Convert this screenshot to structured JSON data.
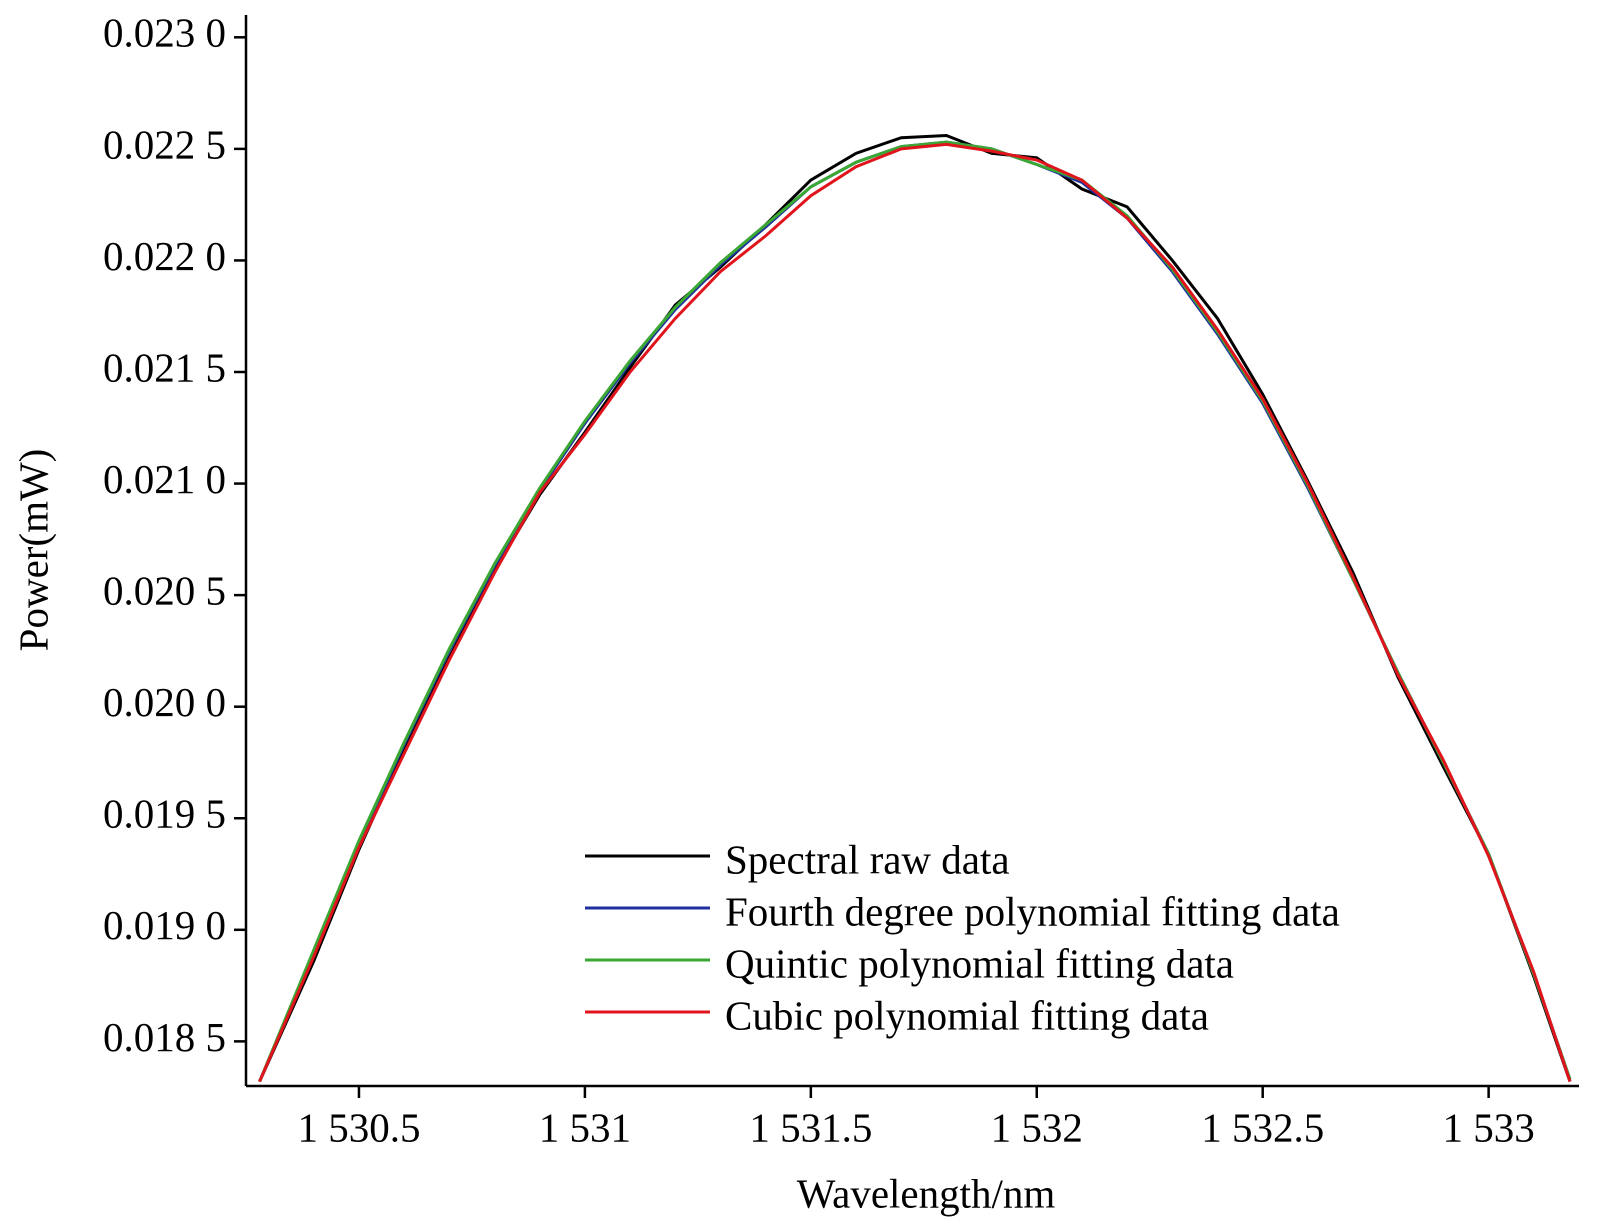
{
  "chart_data": {
    "type": "line",
    "x_label": "Wavelength/nm",
    "y_label": "Power(mW)",
    "x": [
      1530.28,
      1530.4,
      1530.5,
      1530.6,
      1530.7,
      1530.8,
      1530.9,
      1531.0,
      1531.1,
      1531.2,
      1531.3,
      1531.4,
      1531.5,
      1531.6,
      1531.7,
      1531.8,
      1531.9,
      1532.0,
      1532.1,
      1532.2,
      1532.3,
      1532.4,
      1532.5,
      1532.6,
      1532.7,
      1532.8,
      1532.9,
      1533.0,
      1533.1,
      1533.18
    ],
    "series": [
      {
        "name": " Spectral raw data",
        "color": "#000000",
        "values": [
          0.01832,
          0.01886,
          0.01936,
          0.01981,
          0.02022,
          0.02061,
          0.02095,
          0.02123,
          0.02152,
          0.0218,
          0.02197,
          0.02216,
          0.02236,
          0.02248,
          0.02255,
          0.02256,
          0.02248,
          0.02246,
          0.02232,
          0.02224,
          0.022,
          0.02174,
          0.0214,
          0.02101,
          0.0206,
          0.02013,
          0.01973,
          0.01934,
          0.01879,
          0.01832
        ]
      },
      {
        "name": " Fourth degree polynomial fitting data",
        "color": "#1f2fa0",
        "values": [
          0.01832,
          0.0189,
          0.01939,
          0.01983,
          0.02025,
          0.02063,
          0.02097,
          0.02127,
          0.02154,
          0.02178,
          0.02198,
          0.02215,
          0.02233,
          0.02244,
          0.02251,
          0.02253,
          0.0225,
          0.02243,
          0.02235,
          0.02219,
          0.02195,
          0.02167,
          0.02136,
          0.02098,
          0.02057,
          0.02015,
          0.01975,
          0.01934,
          0.0188,
          0.01833
        ]
      },
      {
        "name": "Quintic polynomial fitting data",
        "color": "#3aa832",
        "values": [
          0.01832,
          0.01891,
          0.0194,
          0.01984,
          0.02026,
          0.02064,
          0.02098,
          0.02128,
          0.02155,
          0.02179,
          0.02199,
          0.02216,
          0.02233,
          0.02244,
          0.02251,
          0.02253,
          0.0225,
          0.02243,
          0.02236,
          0.0222,
          0.02196,
          0.02168,
          0.02137,
          0.02099,
          0.02057,
          0.02015,
          0.01975,
          0.01934,
          0.0188,
          0.01833
        ]
      },
      {
        "name": "Cubic polynomial fitting data",
        "color": "#e0141c",
        "values": [
          0.01832,
          0.01888,
          0.01937,
          0.01979,
          0.02021,
          0.0206,
          0.02096,
          0.02122,
          0.0215,
          0.02174,
          0.02195,
          0.02211,
          0.02229,
          0.02242,
          0.0225,
          0.02252,
          0.02249,
          0.02245,
          0.02236,
          0.02219,
          0.02197,
          0.02169,
          0.02138,
          0.021,
          0.02058,
          0.02014,
          0.01976,
          0.01933,
          0.01881,
          0.01832
        ]
      }
    ],
    "xlim": [
      1530.25,
      1533.2
    ],
    "ylim": [
      0.0183,
      0.0231
    ],
    "xticks": [
      {
        "value": 1530.5,
        "label": "1 530.5"
      },
      {
        "value": 1531,
        "label": "1 531"
      },
      {
        "value": 1531.5,
        "label": "1 531.5"
      },
      {
        "value": 1532,
        "label": "1 532"
      },
      {
        "value": 1532.5,
        "label": "1 532.5"
      },
      {
        "value": 1533,
        "label": "1 533"
      }
    ],
    "yticks": [
      {
        "value": 0.0185,
        "label": "0.018 5"
      },
      {
        "value": 0.019,
        "label": "0.019 0"
      },
      {
        "value": 0.0195,
        "label": "0.019 5"
      },
      {
        "value": 0.02,
        "label": "0.020 0"
      },
      {
        "value": 0.0205,
        "label": "0.020 5"
      },
      {
        "value": 0.021,
        "label": "0.021 0"
      },
      {
        "value": 0.0215,
        "label": "0.021 5"
      },
      {
        "value": 0.022,
        "label": "0.022 0"
      },
      {
        "value": 0.0225,
        "label": "0.022 5"
      },
      {
        "value": 0.023,
        "label": "0.023 0"
      }
    ],
    "grid": false,
    "legend": "lower center"
  }
}
